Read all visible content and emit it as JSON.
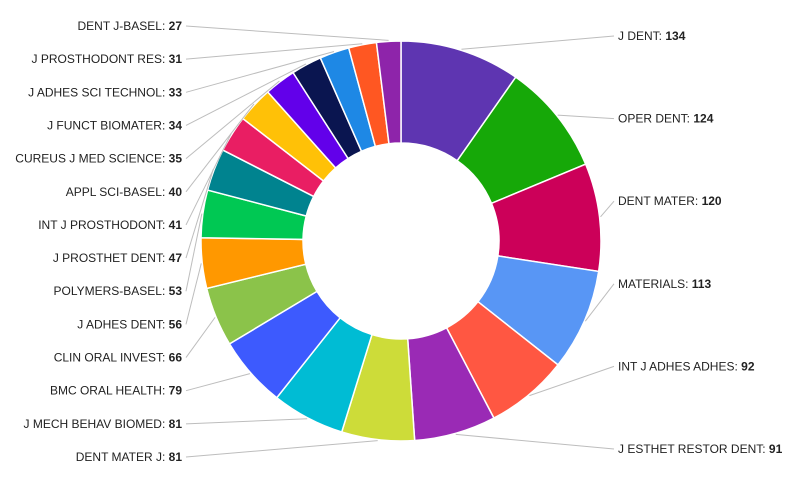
{
  "chart_data": {
    "type": "pie",
    "donut": true,
    "title": "",
    "label_separator": ": ",
    "slices": [
      {
        "label": "J DENT",
        "value": 134,
        "color": "#5e35b1"
      },
      {
        "label": "OPER DENT",
        "value": 124,
        "color": "#16a808"
      },
      {
        "label": "DENT MATER",
        "value": 120,
        "color": "#cc0059"
      },
      {
        "label": "MATERIALS",
        "value": 113,
        "color": "#5896f5"
      },
      {
        "label": "INT J ADHES ADHES",
        "value": 92,
        "color": "#ff5742"
      },
      {
        "label": "J ESTHET RESTOR DENT",
        "value": 91,
        "color": "#9a2ab5"
      },
      {
        "label": "DENT MATER J",
        "value": 81,
        "color": "#cddc39"
      },
      {
        "label": "J MECH BEHAV BIOMED",
        "value": 81,
        "color": "#00bcd4"
      },
      {
        "label": "BMC ORAL HEALTH",
        "value": 79,
        "color": "#3d5afe"
      },
      {
        "label": "CLIN ORAL INVEST",
        "value": 66,
        "color": "#8bc34a"
      },
      {
        "label": "J ADHES DENT",
        "value": 56,
        "color": "#ff9800"
      },
      {
        "label": "POLYMERS-BASEL",
        "value": 53,
        "color": "#00c853"
      },
      {
        "label": "J PROSTHET DENT",
        "value": 47,
        "color": "#00838f"
      },
      {
        "label": "INT J PROSTHODONT",
        "value": 41,
        "color": "#e91e63"
      },
      {
        "label": "APPL SCI-BASEL",
        "value": 40,
        "color": "#ffc107"
      },
      {
        "label": "CUREUS J MED SCIENCE",
        "value": 35,
        "color": "#6200ea"
      },
      {
        "label": "J FUNCT BIOMATER",
        "value": 34,
        "color": "#0a1550"
      },
      {
        "label": "J ADHES SCI TECHNOL",
        "value": 33,
        "color": "#1e88e5"
      },
      {
        "label": "J PROSTHODONT RES",
        "value": 31,
        "color": "#ff5722"
      },
      {
        "label": "DENT J-BASEL",
        "value": 27,
        "color": "#8e24aa"
      }
    ]
  }
}
